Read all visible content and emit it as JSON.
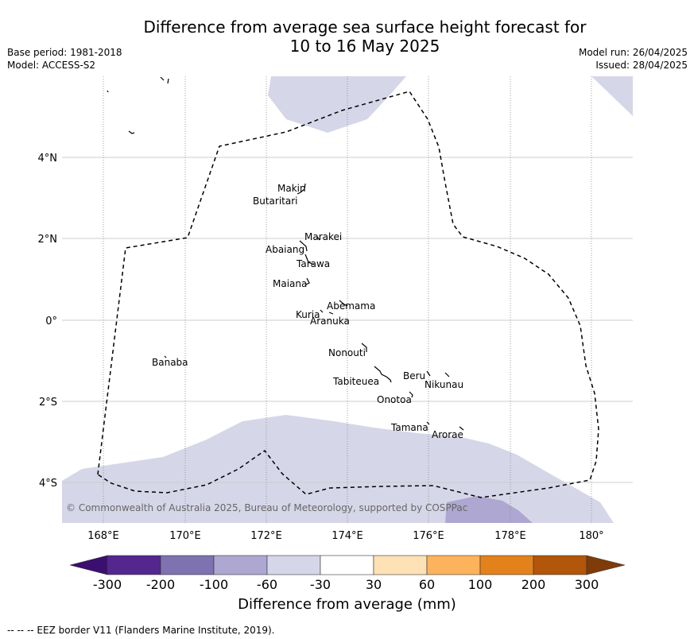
{
  "title": {
    "line1": "Difference from average sea surface height forecast for",
    "line2": "10 to 16 May 2025"
  },
  "meta_left": {
    "base_period": "Base period: 1981-2018",
    "model": "Model: ACCESS-S2"
  },
  "meta_right": {
    "model_run": "Model run: 26/04/2025",
    "issued": "Issued: 28/04/2025"
  },
  "map": {
    "lat_labels": [
      "4°N",
      "2°N",
      "0°",
      "2°S",
      "4°S"
    ],
    "lon_labels": [
      "168°E",
      "170°E",
      "172°E",
      "174°E",
      "176°E",
      "178°E",
      "180°"
    ],
    "islands": [
      "Makin",
      "Butaritari",
      "Marakei",
      "Abaiang",
      "Tarawa",
      "Maiana",
      "Abemama",
      "Kuria",
      "Aranuka",
      "Banaba",
      "Nonouti",
      "Tabiteuea",
      "Beru",
      "Nikunau",
      "Onotoa",
      "Tamana",
      "Arorae"
    ],
    "copyright": "© Commonwealth of Australia 2025, Bureau of Meteorology, supported by COSPPac",
    "colors": {
      "shade_light": "#d6d6e9",
      "shade_mid": "#aea7d1",
      "grid": "#cccccc",
      "eez_border": "#000000"
    }
  },
  "colorbar": {
    "title": "Difference from average (mm)",
    "tick_labels": [
      "-300",
      "-200",
      "-100",
      "-60",
      "-30",
      "30",
      "60",
      "100",
      "200",
      "300"
    ],
    "colors": [
      "#3b0f6f",
      "#54278f",
      "#7f72b0",
      "#aea7d1",
      "#d6d6e9",
      "#ffffff",
      "#fee1b5",
      "#fdb35c",
      "#e3821b",
      "#b25609",
      "#7f3b08"
    ]
  },
  "footnote": "--  --  -- EEZ border V11 (Flanders Marine Institute, 2019)."
}
